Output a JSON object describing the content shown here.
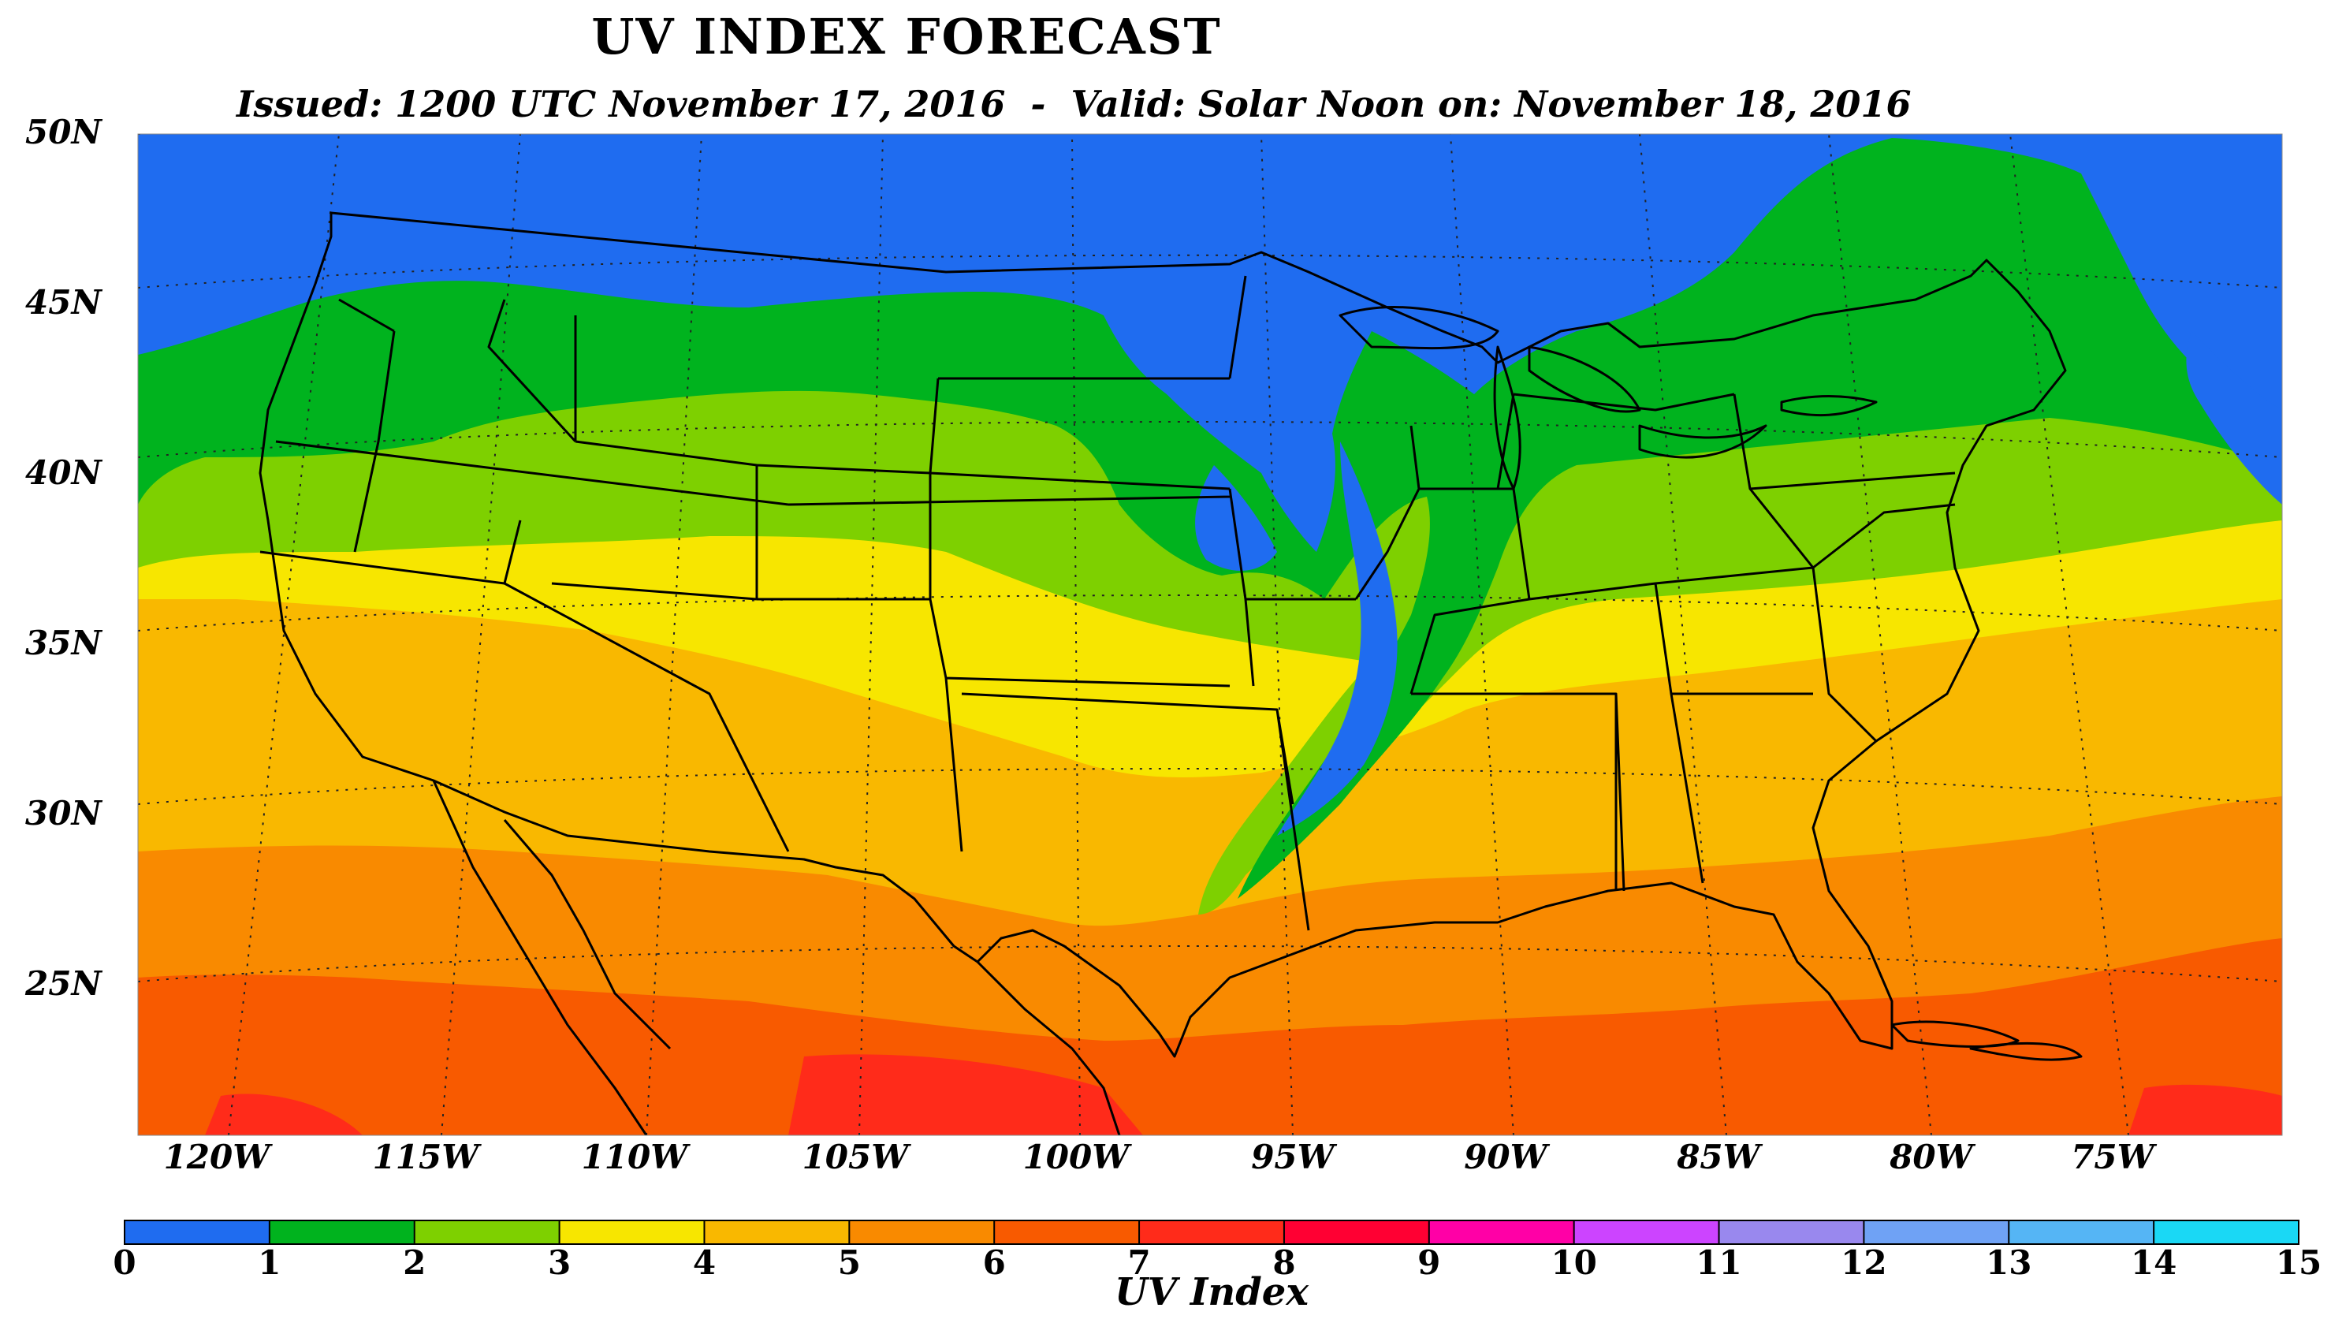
{
  "title": "UV INDEX FORECAST",
  "subtitle": "Issued: 1200 UTC November 17, 2016  -  Valid: Solar Noon on: November 18, 2016",
  "latitude_labels": [
    "50N",
    "45N",
    "40N",
    "35N",
    "30N",
    "25N"
  ],
  "longitude_labels": [
    "120W",
    "115W",
    "110W",
    "105W",
    "100W",
    "95W",
    "90W",
    "85W",
    "80W",
    "75W"
  ],
  "colorbar": {
    "title": "UV Index",
    "ticks": [
      "0",
      "1",
      "2",
      "3",
      "4",
      "5",
      "6",
      "7",
      "8",
      "9",
      "10",
      "11",
      "12",
      "13",
      "14",
      "15"
    ],
    "colors": [
      "#1f6cf0",
      "#00b31e",
      "#7ed000",
      "#f7e600",
      "#f9b800",
      "#f98a00",
      "#f85a00",
      "#ff2b1a",
      "#ff0033",
      "#ff00a6",
      "#cc44ff",
      "#9988ee",
      "#6fa2f5",
      "#55b5f5",
      "#1ad8f5"
    ]
  },
  "map": {
    "region": "Contiguous United States",
    "level_colors": {
      "0": "#1f6cf0",
      "1": "#00b31e",
      "2": "#7ed000",
      "3": "#f7e600",
      "4": "#f9b800",
      "5": "#f98a00",
      "6": "#f85a00",
      "7": "#ff2b1a"
    }
  }
}
